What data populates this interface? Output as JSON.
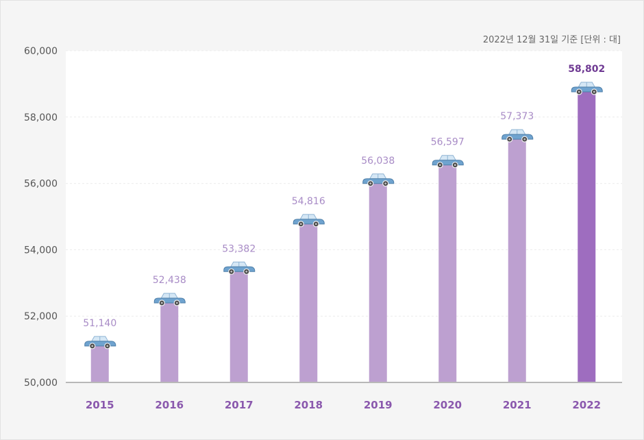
{
  "chart_data": {
    "type": "bar",
    "note": "2022년 12월 31일 기준 [단위 : 대]",
    "categories": [
      "2015",
      "2016",
      "2017",
      "2018",
      "2019",
      "2020",
      "2021",
      "2022"
    ],
    "values": [
      51140,
      52438,
      53382,
      54816,
      56038,
      56597,
      57373,
      58802
    ],
    "value_labels": [
      "51,140",
      "52,438",
      "53,382",
      "54,816",
      "56,038",
      "56,597",
      "57,373",
      "58,802"
    ],
    "yticks": [
      "50,000",
      "52,000",
      "54,000",
      "56,000",
      "58,000",
      "60,000"
    ],
    "ylim": [
      50000,
      60000
    ],
    "highlight_index": 7,
    "colors": {
      "bar": "#bda0d0",
      "bar_highlight": "#9e6dbf",
      "car_body": "#6fa3cf",
      "car_window": "#d5e7f5"
    },
    "marker_icon": "car-icon",
    "grid": true
  }
}
